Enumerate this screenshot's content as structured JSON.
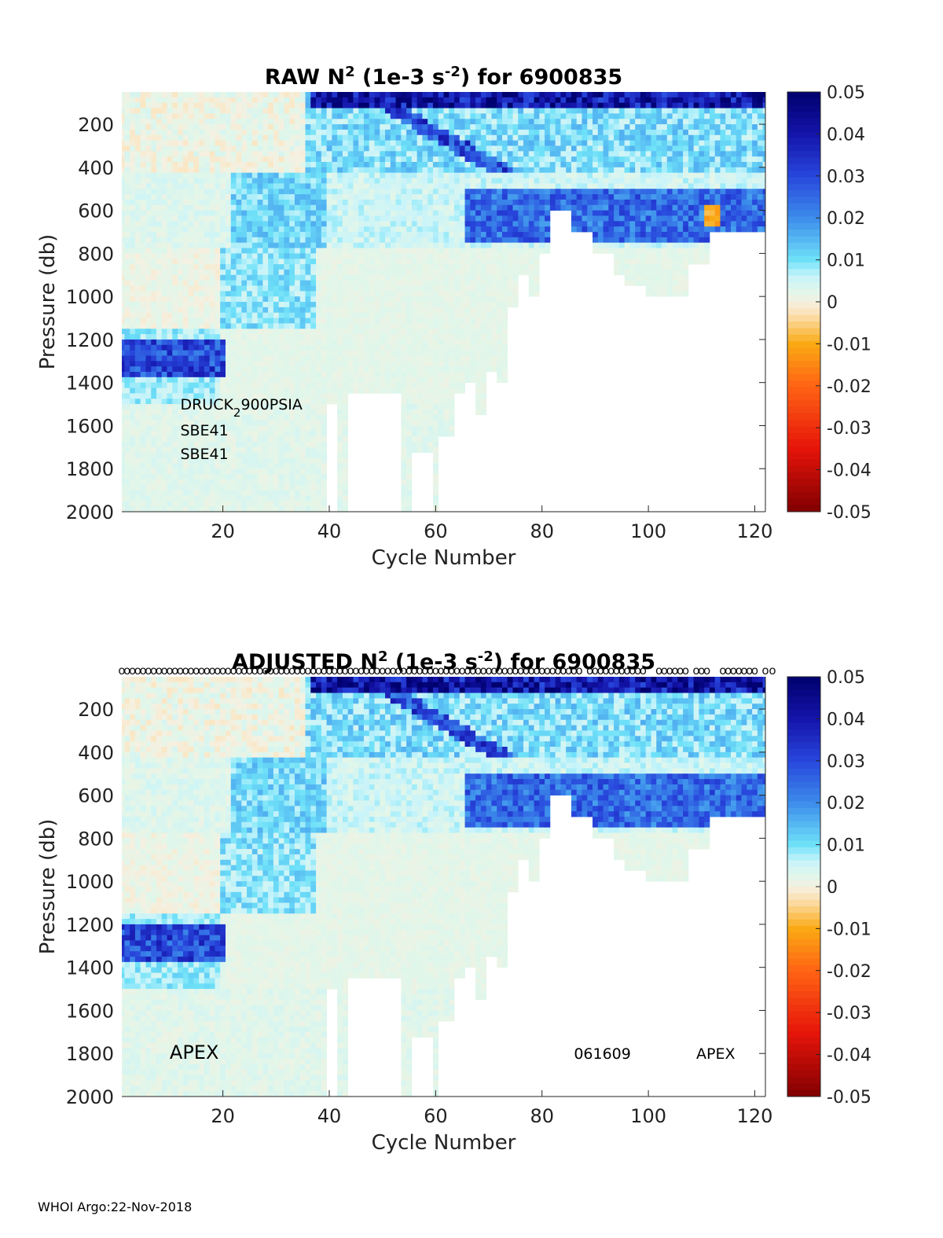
{
  "footer": "WHOI Argo:22-Nov-2018",
  "chart_data": [
    {
      "type": "heatmap",
      "panel": "raw",
      "title_parts": {
        "pre": "RAW N",
        "sup1": "2",
        "mid": " (1e-3 s",
        "sup2": "-2",
        "post": ") for 6900835"
      },
      "xlabel": "Cycle Number",
      "ylabel": "Pressure (db)",
      "xlim": [
        1,
        122
      ],
      "ylim": [
        2000,
        50
      ],
      "xticks": [
        20,
        40,
        60,
        80,
        100,
        120
      ],
      "yticks": [
        200,
        400,
        600,
        800,
        1000,
        1200,
        1400,
        1600,
        1800,
        2000
      ],
      "colorbar": {
        "min": -0.05,
        "max": 0.05,
        "ticks": [
          0.05,
          0.04,
          0.03,
          0.02,
          0.01,
          0,
          -0.01,
          -0.02,
          -0.03,
          -0.04,
          -0.05
        ]
      },
      "annotations": [
        {
          "name": "sensor-label-pressure",
          "parts": [
            "DRUCK",
            "2",
            "900PSIA"
          ],
          "cycle": 12,
          "pressure": 1500
        },
        {
          "name": "sensor-label-ctd-1",
          "text": "SBE41",
          "cycle": 12,
          "pressure": 1620
        },
        {
          "name": "sensor-label-ctd-2",
          "text": "SBE41",
          "cycle": 12,
          "pressure": 1730
        }
      ],
      "profile_max_depth_db": [
        [
          1,
          2000
        ],
        [
          20,
          2000
        ],
        [
          40,
          1500
        ],
        [
          42,
          2000
        ],
        [
          44,
          1450
        ],
        [
          54,
          2000
        ],
        [
          56,
          1720
        ],
        [
          60,
          2000
        ],
        [
          61,
          1650
        ],
        [
          64,
          1450
        ],
        [
          66,
          1400
        ],
        [
          68,
          1550
        ],
        [
          70,
          1350
        ],
        [
          72,
          1400
        ],
        [
          74,
          1050
        ],
        [
          76,
          900
        ],
        [
          78,
          1000
        ],
        [
          80,
          800
        ],
        [
          82,
          600
        ],
        [
          86,
          700
        ],
        [
          88,
          700
        ],
        [
          90,
          800
        ],
        [
          94,
          900
        ],
        [
          96,
          950
        ],
        [
          100,
          1000
        ],
        [
          104,
          1000
        ],
        [
          108,
          850
        ],
        [
          112,
          700
        ],
        [
          116,
          700
        ],
        [
          122,
          700
        ]
      ],
      "features": [
        {
          "pressure_range": [
            1200,
            1360
          ],
          "cycles": [
            1,
            20
          ],
          "value": 0.03
        },
        {
          "pressure_range": [
            480,
            740
          ],
          "cycles": [
            66,
            122
          ],
          "value": 0.025
        },
        {
          "pressure_range": [
            50,
            100
          ],
          "cycles": [
            37,
            122
          ],
          "value": 0.04
        },
        {
          "pressure_range": [
            560,
            660
          ],
          "cycles": [
            111,
            113
          ],
          "value": -0.01
        }
      ]
    },
    {
      "type": "heatmap",
      "panel": "adjusted",
      "title_parts": {
        "pre": "ADJUSTED N",
        "sup1": "2",
        "mid": " (1e-3 s",
        "sup2": "-2",
        "post": ") for 6900835"
      },
      "xlabel": "Cycle Number",
      "ylabel": "Pressure (db)",
      "xlim": [
        1,
        122
      ],
      "ylim": [
        2000,
        50
      ],
      "xticks": [
        20,
        40,
        60,
        80,
        100,
        120
      ],
      "yticks": [
        200,
        400,
        600,
        800,
        1000,
        1200,
        1400,
        1600,
        1800,
        2000
      ],
      "colorbar": {
        "min": -0.05,
        "max": 0.05,
        "ticks": [
          0.05,
          0.04,
          0.03,
          0.02,
          0.01,
          0,
          -0.01,
          -0.02,
          -0.03,
          -0.04,
          -0.05
        ]
      },
      "qc_marker": "o",
      "qc_missing_cycles": [
        88,
        100,
        101,
        108,
        112,
        113,
        121
      ],
      "annotations": [
        {
          "name": "platform-label-left",
          "text": "APEX",
          "cycle": 10,
          "pressure": 1800
        },
        {
          "name": "deploy-date-label",
          "text": "061609",
          "cycle": 86,
          "pressure": 1800
        },
        {
          "name": "platform-label-right",
          "text": "APEX",
          "cycle": 109,
          "pressure": 1800
        }
      ],
      "profile_max_depth_db": [
        [
          1,
          2000
        ],
        [
          20,
          2000
        ],
        [
          40,
          1500
        ],
        [
          42,
          2000
        ],
        [
          44,
          1450
        ],
        [
          54,
          2000
        ],
        [
          56,
          1720
        ],
        [
          60,
          2000
        ],
        [
          61,
          1650
        ],
        [
          64,
          1450
        ],
        [
          66,
          1400
        ],
        [
          68,
          1550
        ],
        [
          70,
          1350
        ],
        [
          72,
          1400
        ],
        [
          74,
          1050
        ],
        [
          76,
          900
        ],
        [
          78,
          1000
        ],
        [
          80,
          800
        ],
        [
          82,
          600
        ],
        [
          86,
          700
        ],
        [
          88,
          700
        ],
        [
          90,
          800
        ],
        [
          94,
          900
        ],
        [
          96,
          950
        ],
        [
          100,
          1000
        ],
        [
          104,
          1000
        ],
        [
          108,
          850
        ],
        [
          112,
          700
        ],
        [
          116,
          700
        ],
        [
          122,
          700
        ]
      ],
      "features": [
        {
          "pressure_range": [
            1200,
            1360
          ],
          "cycles": [
            1,
            20
          ],
          "value": 0.03
        },
        {
          "pressure_range": [
            480,
            740
          ],
          "cycles": [
            66,
            122
          ],
          "value": 0.025
        },
        {
          "pressure_range": [
            50,
            100
          ],
          "cycles": [
            37,
            122
          ],
          "value": 0.04
        }
      ]
    }
  ]
}
